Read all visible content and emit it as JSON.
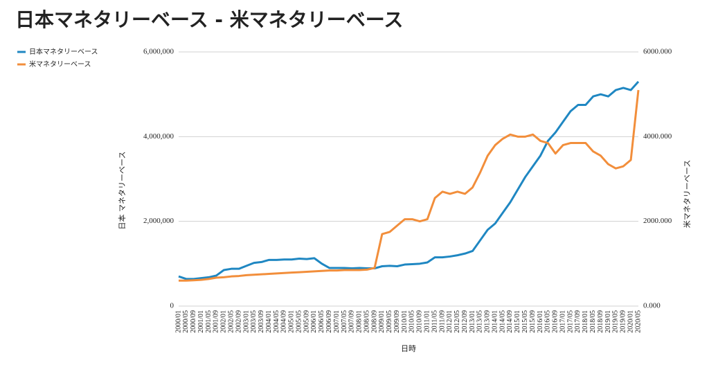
{
  "chart_data": {
    "type": "line",
    "title": "日本マネタリーベース - 米マネタリーベース",
    "x_label": "日時",
    "y_label": "日本 マネタリーベース",
    "y2_label": "米マネタリーベース",
    "legend": "top-left",
    "grid": true,
    "categories": [
      "2000/01",
      "2000/05",
      "2000/09",
      "2001/01",
      "2001/05",
      "2001/09",
      "2002/01",
      "2002/05",
      "2002/09",
      "2003/01",
      "2003/05",
      "2003/09",
      "2004/01",
      "2004/05",
      "2004/09",
      "2005/01",
      "2005/05",
      "2005/09",
      "2006/01",
      "2006/05",
      "2006/09",
      "2007/01",
      "2007/05",
      "2007/09",
      "2008/01",
      "2008/05",
      "2008/09",
      "2009/01",
      "2009/05",
      "2009/09",
      "2010/01",
      "2010/05",
      "2010/09",
      "2011/01",
      "2011/05",
      "2011/09",
      "2012/01",
      "2012/05",
      "2012/09",
      "2013/01",
      "2013/05",
      "2013/09",
      "2014/01",
      "2014/05",
      "2014/09",
      "2015/01",
      "2015/05",
      "2015/09",
      "2016/01",
      "2016/05",
      "2016/09",
      "2017/01",
      "2017/05",
      "2017/09",
      "2018/01",
      "2018/05",
      "2018/09",
      "2019/01",
      "2019/05",
      "2019/09",
      "2020/01",
      "2020/05"
    ],
    "series": [
      {
        "name": "日本マネタリーベース",
        "color": "#1f87c2",
        "axis": "y",
        "values": [
          700000,
          640000,
          640000,
          660000,
          680000,
          720000,
          850000,
          880000,
          880000,
          950000,
          1020000,
          1040000,
          1090000,
          1090000,
          1100000,
          1100000,
          1120000,
          1110000,
          1130000,
          1000000,
          900000,
          900000,
          900000,
          890000,
          900000,
          890000,
          890000,
          940000,
          950000,
          940000,
          980000,
          990000,
          1000000,
          1030000,
          1150000,
          1150000,
          1170000,
          1200000,
          1240000,
          1300000,
          1550000,
          1800000,
          1950000,
          2200000,
          2450000,
          2750000,
          3050000,
          3300000,
          3550000,
          3900000,
          4100000,
          4350000,
          4600000,
          4750000,
          4750000,
          4950000,
          5000000,
          4950000,
          5100000,
          5150000,
          5100000,
          5300000
        ]
      },
      {
        "name": "米マネタリーベース",
        "color": "#f28e3b",
        "axis": "y2",
        "values": [
          600,
          600,
          610,
          620,
          640,
          670,
          680,
          700,
          710,
          730,
          740,
          750,
          760,
          770,
          780,
          790,
          800,
          810,
          820,
          830,
          840,
          840,
          850,
          850,
          850,
          860,
          900,
          1700,
          1750,
          1900,
          2050,
          2050,
          2000,
          2050,
          2550,
          2700,
          2650,
          2700,
          2650,
          2800,
          3150,
          3550,
          3800,
          3950,
          4050,
          4000,
          4000,
          4050,
          3900,
          3850,
          3600,
          3800,
          3850,
          3850,
          3850,
          3650,
          3550,
          3350,
          3250,
          3300,
          3450,
          5100
        ]
      }
    ],
    "ylim": [
      0,
      6000000
    ],
    "yticks": [
      0,
      {
        "value": 2000000,
        "label": "2,000,000"
      },
      {
        "value": 4000000,
        "label": "4,000,000"
      },
      {
        "value": 6000000,
        "label": "6,000,000"
      }
    ],
    "y2lim": [
      0,
      6000
    ],
    "y2ticks": [
      {
        "value": 0,
        "label": "0.000"
      },
      {
        "value": 2000,
        "label": "2000.000"
      },
      {
        "value": 4000,
        "label": "4000.000"
      },
      {
        "value": 6000,
        "label": "6000.000"
      }
    ]
  }
}
